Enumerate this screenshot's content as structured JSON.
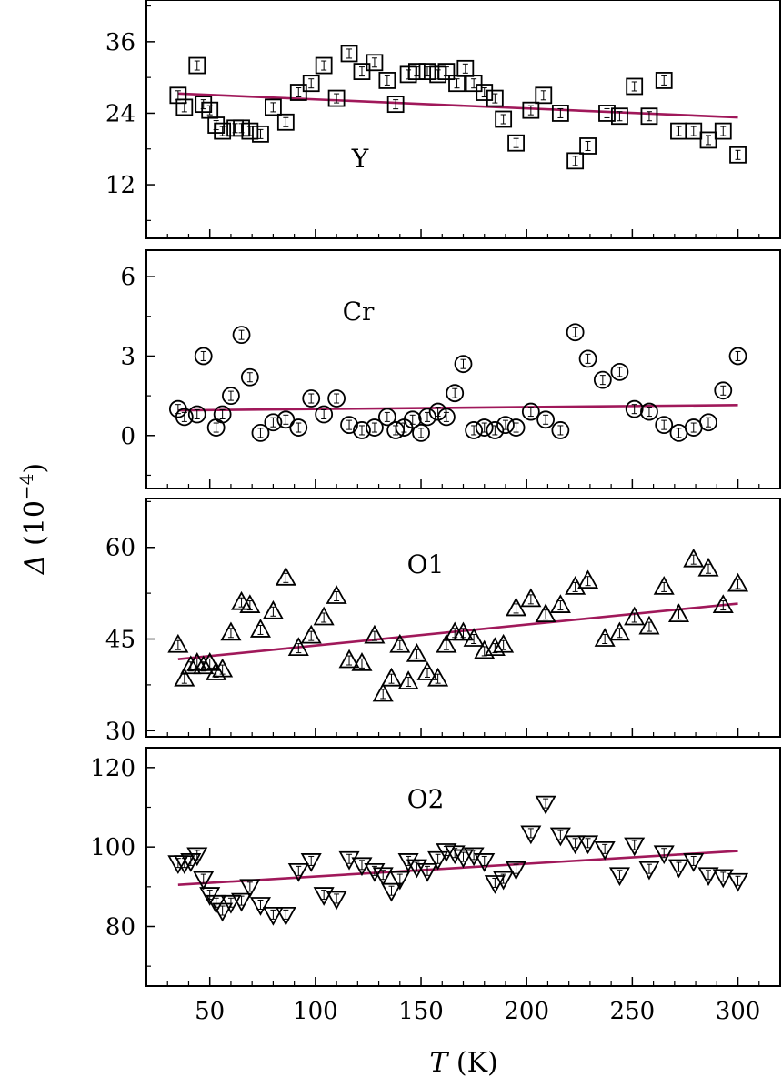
{
  "chart_data": {
    "type": "scatter",
    "xlabel": "T (K)",
    "xlabel_italic": "T",
    "xlabel_unit": "(K)",
    "ylabel": "Δ (10^-4)",
    "ylabel_symbol": "Δ",
    "ylabel_unit_base": "(10",
    "ylabel_unit_exp": "−4",
    "ylabel_unit_close": ")",
    "xlim": [
      20,
      320
    ],
    "xticks": [
      50,
      100,
      150,
      200,
      250,
      300
    ],
    "fit_color": "#a0185a",
    "panels": [
      {
        "label": "Y",
        "marker": "square",
        "ylim": [
          3,
          43
        ],
        "yticks": [
          12,
          24,
          36
        ],
        "ytick_labels": [
          "12",
          "24",
          "36"
        ],
        "fit": {
          "x": [
            35,
            300
          ],
          "y": [
            27.3,
            23.3
          ]
        },
        "x": [
          35,
          38,
          44,
          47,
          50,
          53,
          56,
          62,
          65,
          69,
          74,
          80,
          86,
          92,
          98,
          104,
          110,
          116,
          122,
          128,
          134,
          138,
          144,
          148,
          153,
          158,
          162,
          167,
          171,
          175,
          180,
          185,
          189,
          195,
          202,
          208,
          216,
          223,
          229,
          238,
          244,
          251,
          258,
          265,
          272,
          279,
          286,
          293,
          300
        ],
        "y": [
          27.0,
          25.0,
          32.0,
          25.5,
          24.5,
          22.0,
          21.0,
          21.5,
          21.5,
          21.0,
          20.5,
          25.0,
          22.5,
          27.5,
          29.0,
          32.0,
          26.5,
          34.0,
          31.0,
          32.5,
          29.5,
          25.5,
          30.5,
          31.0,
          31.0,
          30.5,
          31.0,
          29.0,
          31.5,
          29.0,
          27.5,
          26.5,
          23.0,
          19.0,
          24.5,
          27.0,
          24.0,
          16.0,
          18.5,
          24.0,
          23.5,
          28.5,
          23.5,
          29.5,
          21.0,
          21.0,
          19.5,
          21.0,
          17.0
        ]
      },
      {
        "label": "Cr",
        "marker": "circle",
        "ylim": [
          -2,
          7
        ],
        "yticks": [
          0,
          3,
          6
        ],
        "ytick_labels": [
          "0",
          "3",
          "6"
        ],
        "fit": {
          "x": [
            35,
            300
          ],
          "y": [
            0.95,
            1.15
          ]
        },
        "x": [
          35,
          38,
          44,
          47,
          53,
          56,
          60,
          65,
          69,
          74,
          80,
          86,
          92,
          98,
          104,
          110,
          116,
          122,
          128,
          134,
          138,
          142,
          146,
          150,
          153,
          158,
          162,
          166,
          170,
          175,
          180,
          185,
          190,
          195,
          202,
          209,
          216,
          223,
          229,
          236,
          244,
          251,
          258,
          265,
          272,
          279,
          286,
          293,
          300
        ],
        "y": [
          1.0,
          0.7,
          0.8,
          3.0,
          0.3,
          0.8,
          1.5,
          3.8,
          2.2,
          0.1,
          0.5,
          0.6,
          0.3,
          1.4,
          0.8,
          1.4,
          0.4,
          0.2,
          0.3,
          0.7,
          0.2,
          0.3,
          0.6,
          0.1,
          0.7,
          0.9,
          0.7,
          1.6,
          2.7,
          0.2,
          0.3,
          0.2,
          0.4,
          0.3,
          0.9,
          0.6,
          0.2,
          3.9,
          2.9,
          2.1,
          2.4,
          1.0,
          0.9,
          0.4,
          0.1,
          0.3,
          0.5,
          1.7,
          3.0
        ]
      },
      {
        "label": "O1",
        "marker": "triangle-up",
        "ylim": [
          29,
          68
        ],
        "yticks": [
          30,
          45,
          60
        ],
        "ytick_labels": [
          "30",
          "45",
          "60"
        ],
        "fit": {
          "x": [
            35,
            300
          ],
          "y": [
            41.7,
            50.8
          ]
        },
        "x": [
          35,
          38,
          41,
          44,
          47,
          50,
          53,
          56,
          60,
          65,
          69,
          74,
          80,
          86,
          92,
          98,
          104,
          110,
          116,
          122,
          128,
          132,
          136,
          140,
          144,
          148,
          153,
          158,
          162,
          166,
          170,
          175,
          180,
          185,
          189,
          195,
          202,
          209,
          216,
          223,
          229,
          237,
          244,
          251,
          258,
          265,
          272,
          279,
          286,
          293,
          300
        ],
        "y": [
          44.0,
          38.5,
          40.5,
          41.0,
          40.5,
          41.0,
          39.5,
          40.0,
          46.0,
          51.0,
          50.5,
          46.5,
          49.5,
          55.0,
          43.5,
          45.5,
          48.5,
          52.0,
          41.5,
          41.0,
          45.5,
          36.0,
          38.5,
          44.0,
          38.0,
          42.5,
          39.5,
          38.5,
          44.0,
          46.0,
          46.0,
          45.0,
          43.0,
          43.5,
          44.0,
          50.0,
          51.5,
          49.0,
          50.5,
          53.5,
          54.5,
          45.0,
          46.0,
          48.5,
          47.0,
          53.5,
          49.0,
          58.0,
          56.5,
          50.5,
          54.0
        ]
      },
      {
        "label": "O2",
        "marker": "triangle-down",
        "ylim": [
          65,
          125
        ],
        "yticks": [
          80,
          100,
          120
        ],
        "ytick_labels": [
          "80",
          "100",
          "120"
        ],
        "fit": {
          "x": [
            35,
            300
          ],
          "y": [
            90.5,
            99.0
          ]
        },
        "x": [
          35,
          38,
          41,
          44,
          47,
          50,
          53,
          56,
          60,
          65,
          69,
          74,
          80,
          86,
          92,
          98,
          104,
          110,
          116,
          122,
          128,
          132,
          136,
          140,
          144,
          148,
          153,
          158,
          162,
          166,
          170,
          175,
          180,
          185,
          189,
          195,
          202,
          209,
          216,
          223,
          229,
          237,
          244,
          251,
          258,
          265,
          272,
          279,
          286,
          293,
          300
        ],
        "y": [
          96.0,
          96.0,
          96.5,
          98.0,
          92.0,
          88.0,
          86.0,
          84.0,
          86.0,
          86.5,
          90.0,
          85.5,
          83.0,
          83.0,
          94.0,
          96.5,
          88.0,
          87.0,
          97.0,
          95.5,
          94.0,
          93.0,
          89.0,
          92.0,
          96.5,
          95.0,
          94.0,
          97.0,
          99.0,
          98.5,
          97.5,
          98.0,
          96.5,
          91.0,
          92.0,
          94.5,
          103.5,
          111.0,
          103.0,
          101.0,
          101.0,
          99.5,
          93.0,
          100.5,
          94.5,
          98.5,
          95.0,
          96.5,
          93.0,
          92.5,
          91.5
        ]
      }
    ]
  }
}
